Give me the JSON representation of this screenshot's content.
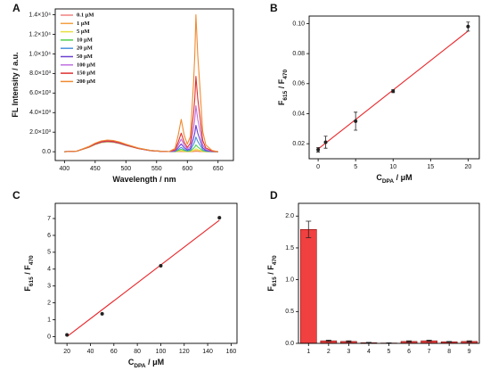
{
  "chart_data": [
    {
      "type": "line",
      "panel": "A",
      "x_label": [
        "Wavelength / nm"
      ],
      "y_label": [
        "FL Intensity / a.u."
      ],
      "x": [
        400,
        420,
        440,
        450,
        460,
        470,
        480,
        490,
        500,
        520,
        540,
        560,
        570,
        580,
        585,
        590,
        595,
        600,
        605,
        610,
        612,
        614,
        617,
        620,
        625,
        630,
        640,
        650
      ],
      "series": [
        {
          "name": "0.1 μM",
          "color": "#f08080",
          "values": [
            0,
            50,
            450,
            730,
            920,
            1000,
            950,
            820,
            640,
            320,
            110,
            30,
            10,
            3,
            15,
            30,
            15,
            6,
            7,
            25,
            35,
            50,
            35,
            25,
            8,
            3,
            1,
            0
          ]
        },
        {
          "name": "1 μM",
          "color": "#f5a040",
          "values": [
            0,
            53,
            473,
            767,
            966,
            1050,
            998,
            861,
            672,
            336,
            116,
            32,
            11,
            6,
            30,
            60,
            30,
            11,
            15,
            60,
            84,
            120,
            84,
            60,
            18,
            6,
            1,
            0
          ]
        },
        {
          "name": "5 μM",
          "color": "#e8e040",
          "values": [
            0,
            50,
            450,
            730,
            920,
            1000,
            950,
            820,
            640,
            320,
            110,
            30,
            10,
            12,
            60,
            120,
            60,
            24,
            36,
            150,
            210,
            300,
            210,
            150,
            45,
            15,
            3,
            0
          ]
        },
        {
          "name": "10 μM",
          "color": "#50d050",
          "values": [
            0,
            55,
            495,
            803,
            1012,
            1100,
            1045,
            902,
            704,
            352,
            121,
            33,
            11,
            25,
            125,
            250,
            125,
            52,
            83,
            350,
            490,
            700,
            490,
            350,
            105,
            35,
            7,
            0
          ]
        },
        {
          "name": "20 μM",
          "color": "#4a90e0",
          "values": [
            0,
            58,
            518,
            840,
            1058,
            1150,
            1093,
            943,
            736,
            368,
            127,
            35,
            12,
            45,
            225,
            450,
            225,
            98,
            173,
            750,
            1050,
            1500,
            1050,
            750,
            225,
            75,
            15,
            0
          ]
        },
        {
          "name": "50 μM",
          "color": "#6a40d0",
          "values": [
            0,
            53,
            473,
            767,
            966,
            1050,
            998,
            861,
            672,
            336,
            116,
            32,
            11,
            80,
            400,
            800,
            400,
            174,
            310,
            1350,
            1890,
            2700,
            1890,
            1350,
            405,
            135,
            27,
            0
          ]
        },
        {
          "name": "100 μM",
          "color": "#c070e0",
          "values": [
            0,
            55,
            495,
            803,
            1012,
            1100,
            1045,
            902,
            704,
            352,
            121,
            33,
            11,
            130,
            650,
            1300,
            650,
            289,
            535,
            2350,
            3290,
            4700,
            3290,
            2350,
            705,
            235,
            47,
            0
          ]
        },
        {
          "name": "150 μM",
          "color": "#e03030",
          "values": [
            0,
            55,
            495,
            803,
            1012,
            1100,
            1045,
            902,
            704,
            352,
            121,
            33,
            11,
            190,
            950,
            1900,
            950,
            439,
            865,
            3850,
            5390,
            7700,
            5390,
            3850,
            1155,
            385,
            77,
            0
          ]
        },
        {
          "name": "200 μM",
          "color": "#f08a30",
          "values": [
            0,
            60,
            540,
            876,
            1104,
            1200,
            1140,
            984,
            768,
            384,
            132,
            36,
            12,
            330,
            1650,
            3300,
            1650,
            775,
            1565,
            7000,
            9800,
            14000,
            9800,
            7000,
            2100,
            700,
            140,
            0
          ]
        }
      ],
      "xlim": [
        385,
        675
      ],
      "xticks": [
        400,
        450,
        500,
        550,
        600,
        650
      ],
      "ylim": [
        -900,
        14600
      ],
      "yticks": [
        {
          "value": 0,
          "label": "0.0"
        },
        {
          "value": 2000,
          "label": "2.0×10³"
        },
        {
          "value": 4000,
          "label": "4.0×10³"
        },
        {
          "value": 6000,
          "label": "6.0×10³"
        },
        {
          "value": 8000,
          "label": "8.0×10³"
        },
        {
          "value": 10000,
          "label": "1.0×10⁴"
        },
        {
          "value": 12000,
          "label": "1.2×10⁴"
        },
        {
          "value": 14000,
          "label": "1.4×10⁴"
        }
      ],
      "legend": "upper left"
    },
    {
      "type": "scatter",
      "panel": "B",
      "x_label": [
        "C",
        "DPA",
        " / μM"
      ],
      "y_label": [
        "F",
        "615",
        " / F",
        "470"
      ],
      "x": [
        0,
        1,
        5,
        10,
        20
      ],
      "values": [
        0.016,
        0.021,
        0.035,
        0.055,
        0.098
      ],
      "errors": [
        0.0015,
        0.004,
        0.006,
        0.001,
        0.003
      ],
      "color": "#222222",
      "fit": {
        "x": [
          0,
          20
        ],
        "values": [
          0.0165,
          0.095
        ],
        "color": "#e8262a"
      },
      "xlim": [
        -1.2,
        21.5
      ],
      "xticks": [
        0,
        5,
        10,
        15,
        20
      ],
      "ylim": [
        0.01,
        0.105
      ],
      "yticks": [
        {
          "value": 0.02,
          "label": "0.02"
        },
        {
          "value": 0.04,
          "label": "0.04"
        },
        {
          "value": 0.06,
          "label": "0.06"
        },
        {
          "value": 0.08,
          "label": "0.08"
        },
        {
          "value": 0.1,
          "label": "0.10"
        }
      ]
    },
    {
      "type": "scatter",
      "panel": "C",
      "x_label": [
        "C",
        "DPA",
        " / μM"
      ],
      "y_label": [
        "F",
        "615",
        " / F",
        "470"
      ],
      "x": [
        20,
        50,
        100,
        150
      ],
      "values": [
        0.1,
        1.35,
        4.2,
        7.05
      ],
      "color": "#222222",
      "fit": {
        "x": [
          20,
          150
        ],
        "values": [
          0.0,
          6.9
        ],
        "color": "#e8262a"
      },
      "xlim": [
        10,
        165
      ],
      "xticks": [
        20,
        40,
        60,
        80,
        100,
        120,
        140,
        160
      ],
      "ylim": [
        -0.4,
        7.9
      ],
      "yticks": [
        0,
        1,
        2,
        3,
        4,
        5,
        6,
        7
      ]
    },
    {
      "type": "bar",
      "panel": "D",
      "y_label": [
        "F",
        "615",
        " / F",
        "470"
      ],
      "categories": [
        "1",
        "2",
        "3",
        "4",
        "5",
        "6",
        "7",
        "8",
        "9"
      ],
      "values": [
        1.79,
        0.04,
        0.03,
        0.01,
        0.005,
        0.03,
        0.04,
        0.025,
        0.03
      ],
      "errors": [
        0.13,
        0.01,
        0.01,
        0.005,
        0.003,
        0.01,
        0.01,
        0.005,
        0.01
      ],
      "color": "#f04040",
      "ylim": [
        0,
        2.2
      ],
      "yticks": [
        {
          "value": 0,
          "label": "0.0"
        },
        {
          "value": 0.5,
          "label": "0.5"
        },
        {
          "value": 1,
          "label": "1.0"
        },
        {
          "value": 1.5,
          "label": "1.5"
        },
        {
          "value": 2,
          "label": "2.0"
        }
      ]
    }
  ]
}
